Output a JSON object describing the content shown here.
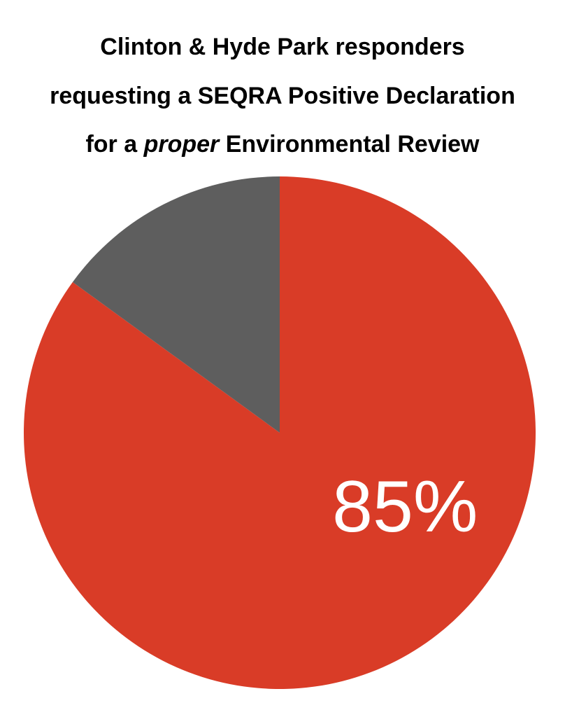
{
  "title": {
    "line1": "Clinton & Hyde Park responders",
    "line2": "requesting a SEQRA Positive Declaration",
    "line3_prefix": "for a ",
    "line3_emphasis": "proper",
    "line3_suffix": " Environmental Review"
  },
  "chart_data": {
    "type": "pie",
    "title": "Clinton & Hyde Park responders requesting a SEQRA Positive Declaration for a proper Environmental Review",
    "slices": [
      {
        "value": 85,
        "label": "85%",
        "color": "#d93c27"
      },
      {
        "value": 15,
        "label": "",
        "color": "#5e5e5e"
      }
    ],
    "start_angle_deg": 0,
    "direction": "clockwise",
    "legend": "none"
  }
}
